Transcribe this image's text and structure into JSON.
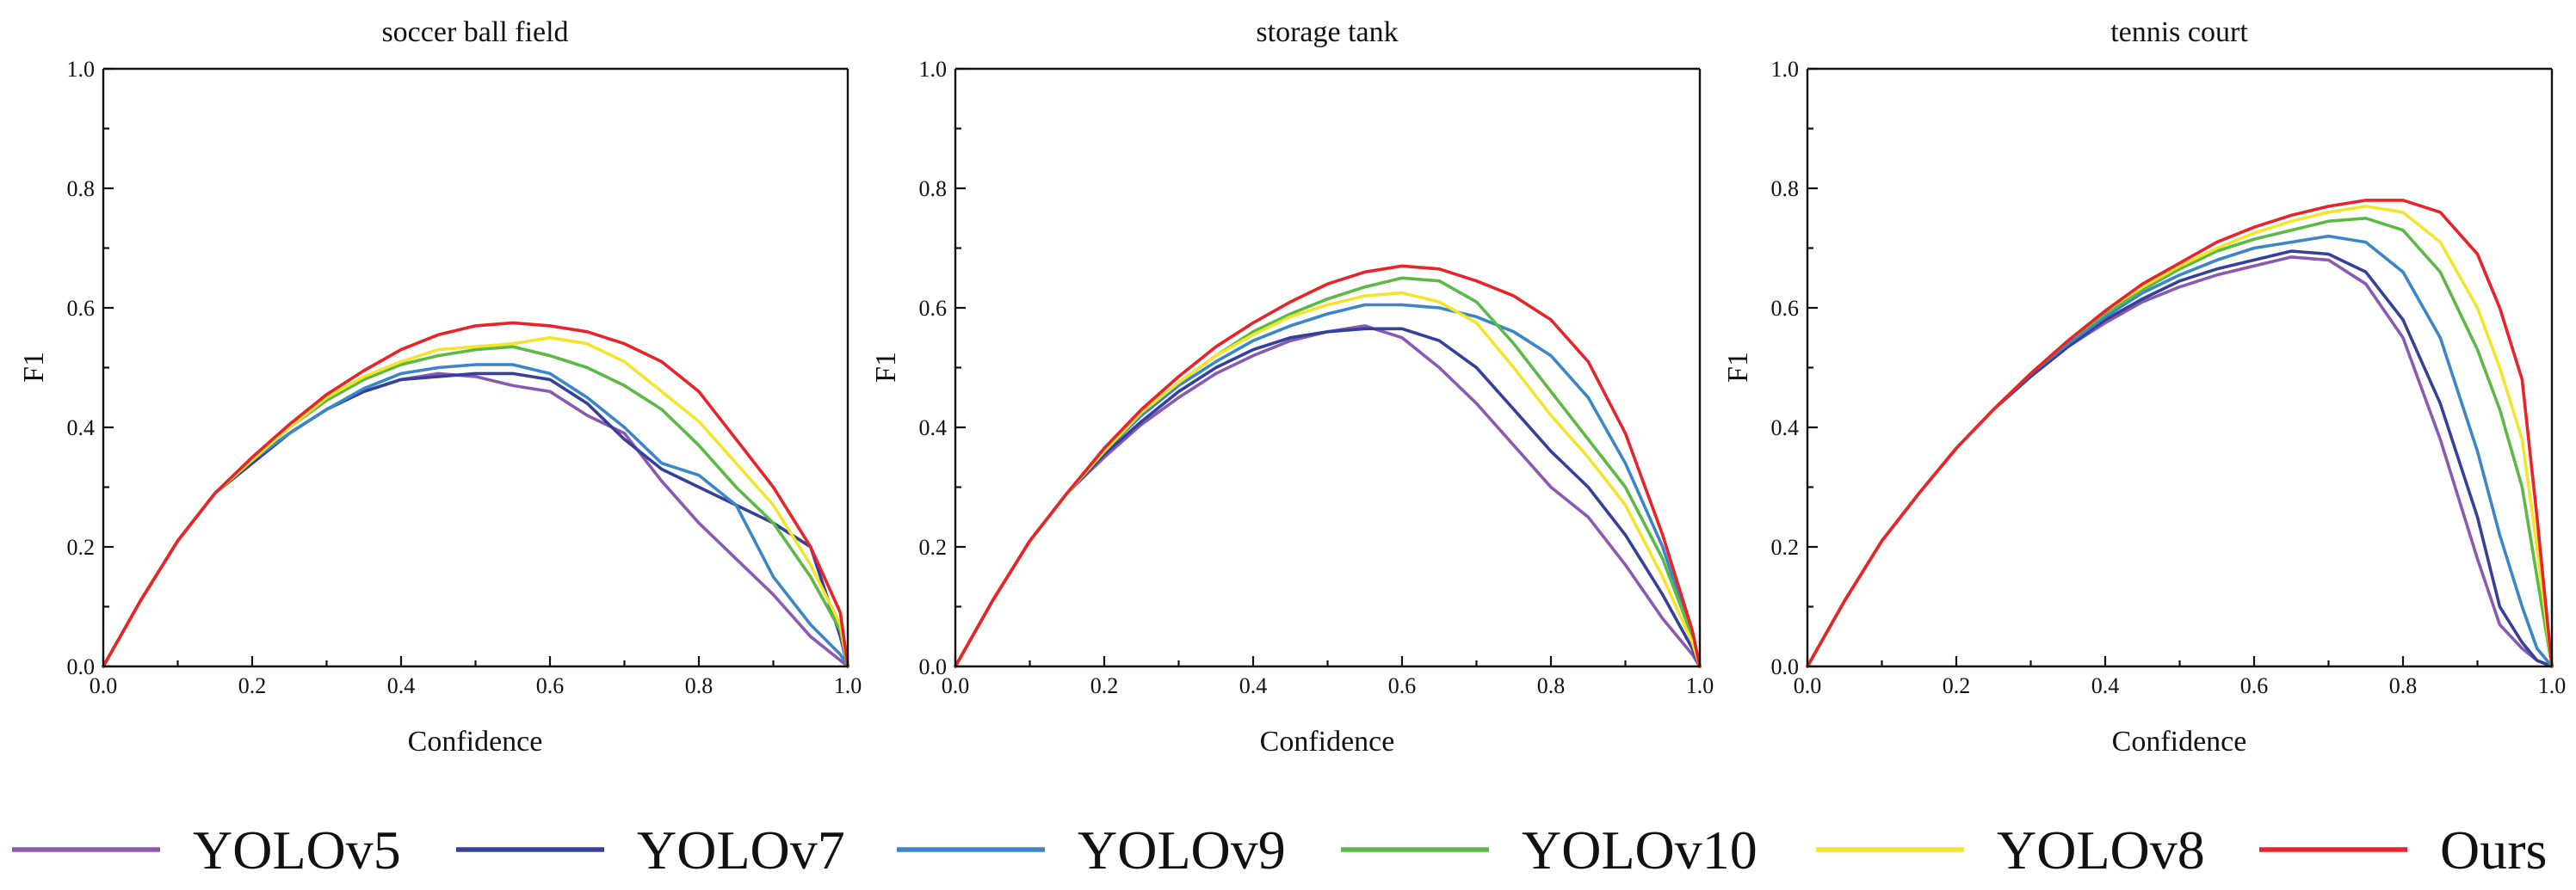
{
  "colors": {
    "YOLOv5": "#8a5ab3",
    "YOLOv7": "#35409a",
    "YOLOv9": "#3a86c8",
    "YOLOv10": "#5cb946",
    "YOLOv8": "#f2e52c",
    "Ours": "#e8232a"
  },
  "legend": {
    "items": [
      {
        "label": "YOLOv5",
        "color": "#8a5ab3"
      },
      {
        "label": "YOLOv7",
        "color": "#35409a"
      },
      {
        "label": "YOLOv9",
        "color": "#3a86c8"
      },
      {
        "label": "YOLOv10",
        "color": "#5cb946"
      },
      {
        "label": "YOLOv8",
        "color": "#f2e52c"
      },
      {
        "label": "Ours",
        "color": "#e8232a"
      }
    ]
  },
  "chart_data": [
    {
      "type": "line",
      "title": "soccer ball field",
      "xlabel": "Confidence",
      "ylabel": "F1",
      "xlim": [
        0.0,
        1.0
      ],
      "ylim": [
        0.0,
        1.0
      ],
      "xticks": [
        "0.0",
        "0.2",
        "0.4",
        "0.6",
        "0.8",
        "1.0"
      ],
      "yticks": [
        "0.0",
        "0.2",
        "0.4",
        "0.6",
        "0.8",
        "1.0"
      ],
      "x": [
        0.0,
        0.05,
        0.1,
        0.15,
        0.2,
        0.25,
        0.3,
        0.35,
        0.4,
        0.45,
        0.5,
        0.55,
        0.6,
        0.65,
        0.7,
        0.75,
        0.8,
        0.85,
        0.9,
        0.95,
        0.99,
        1.0
      ],
      "series": [
        {
          "name": "YOLOv5",
          "values": [
            0.0,
            0.11,
            0.21,
            0.29,
            0.34,
            0.39,
            0.43,
            0.46,
            0.48,
            0.49,
            0.485,
            0.47,
            0.46,
            0.42,
            0.39,
            0.31,
            0.24,
            0.18,
            0.12,
            0.05,
            0.01,
            0.0
          ]
        },
        {
          "name": "YOLOv7",
          "values": [
            0.0,
            0.11,
            0.21,
            0.29,
            0.34,
            0.39,
            0.43,
            0.46,
            0.48,
            0.485,
            0.49,
            0.49,
            0.48,
            0.44,
            0.38,
            0.33,
            0.3,
            0.27,
            0.24,
            0.2,
            0.05,
            0.0
          ]
        },
        {
          "name": "YOLOv9",
          "values": [
            0.0,
            0.11,
            0.21,
            0.29,
            0.345,
            0.39,
            0.43,
            0.465,
            0.49,
            0.5,
            0.505,
            0.505,
            0.49,
            0.45,
            0.4,
            0.34,
            0.32,
            0.27,
            0.15,
            0.07,
            0.02,
            0.0
          ]
        },
        {
          "name": "YOLOv10",
          "values": [
            0.0,
            0.11,
            0.21,
            0.29,
            0.345,
            0.4,
            0.445,
            0.48,
            0.505,
            0.52,
            0.53,
            0.535,
            0.52,
            0.5,
            0.47,
            0.43,
            0.37,
            0.3,
            0.24,
            0.15,
            0.06,
            0.0
          ]
        },
        {
          "name": "YOLOv8",
          "values": [
            0.0,
            0.11,
            0.21,
            0.29,
            0.345,
            0.4,
            0.45,
            0.485,
            0.51,
            0.53,
            0.535,
            0.54,
            0.55,
            0.54,
            0.51,
            0.46,
            0.41,
            0.34,
            0.27,
            0.17,
            0.07,
            0.0
          ]
        },
        {
          "name": "Ours",
          "values": [
            0.0,
            0.11,
            0.21,
            0.29,
            0.35,
            0.405,
            0.455,
            0.495,
            0.53,
            0.555,
            0.57,
            0.575,
            0.57,
            0.56,
            0.54,
            0.51,
            0.46,
            0.38,
            0.3,
            0.2,
            0.09,
            0.0
          ]
        }
      ]
    },
    {
      "type": "line",
      "title": "storage tank",
      "xlabel": "Confidence",
      "ylabel": "F1",
      "xlim": [
        0.0,
        1.0
      ],
      "ylim": [
        0.0,
        1.0
      ],
      "xticks": [
        "0.0",
        "0.2",
        "0.4",
        "0.6",
        "0.8",
        "1.0"
      ],
      "yticks": [
        "0.0",
        "0.2",
        "0.4",
        "0.6",
        "0.8",
        "1.0"
      ],
      "x": [
        0.0,
        0.05,
        0.1,
        0.15,
        0.2,
        0.25,
        0.3,
        0.35,
        0.4,
        0.45,
        0.5,
        0.55,
        0.6,
        0.65,
        0.7,
        0.75,
        0.8,
        0.85,
        0.9,
        0.95,
        0.99,
        1.0
      ],
      "series": [
        {
          "name": "YOLOv5",
          "values": [
            0.0,
            0.11,
            0.21,
            0.29,
            0.35,
            0.405,
            0.45,
            0.49,
            0.52,
            0.545,
            0.56,
            0.57,
            0.55,
            0.5,
            0.44,
            0.37,
            0.3,
            0.25,
            0.17,
            0.08,
            0.02,
            0.0
          ]
        },
        {
          "name": "YOLOv7",
          "values": [
            0.0,
            0.11,
            0.21,
            0.29,
            0.355,
            0.41,
            0.46,
            0.5,
            0.53,
            0.55,
            0.56,
            0.565,
            0.565,
            0.545,
            0.5,
            0.43,
            0.36,
            0.3,
            0.22,
            0.12,
            0.03,
            0.0
          ]
        },
        {
          "name": "YOLOv9",
          "values": [
            0.0,
            0.11,
            0.21,
            0.29,
            0.36,
            0.42,
            0.47,
            0.51,
            0.545,
            0.57,
            0.59,
            0.605,
            0.605,
            0.6,
            0.585,
            0.56,
            0.52,
            0.45,
            0.34,
            0.2,
            0.05,
            0.0
          ]
        },
        {
          "name": "YOLOv10",
          "values": [
            0.0,
            0.11,
            0.21,
            0.29,
            0.36,
            0.425,
            0.475,
            0.52,
            0.56,
            0.59,
            0.615,
            0.635,
            0.65,
            0.645,
            0.61,
            0.54,
            0.46,
            0.38,
            0.3,
            0.18,
            0.05,
            0.0
          ]
        },
        {
          "name": "YOLOv8",
          "values": [
            0.0,
            0.11,
            0.21,
            0.29,
            0.36,
            0.425,
            0.475,
            0.52,
            0.555,
            0.585,
            0.605,
            0.62,
            0.625,
            0.61,
            0.575,
            0.5,
            0.42,
            0.35,
            0.27,
            0.15,
            0.04,
            0.0
          ]
        },
        {
          "name": "Ours",
          "values": [
            0.0,
            0.11,
            0.21,
            0.29,
            0.365,
            0.43,
            0.485,
            0.535,
            0.575,
            0.61,
            0.64,
            0.66,
            0.67,
            0.665,
            0.645,
            0.62,
            0.58,
            0.51,
            0.39,
            0.22,
            0.06,
            0.0
          ]
        }
      ]
    },
    {
      "type": "line",
      "title": "tennis court",
      "xlabel": "Confidence",
      "ylabel": "F1",
      "xlim": [
        0.0,
        1.0
      ],
      "ylim": [
        0.0,
        1.0
      ],
      "xticks": [
        "0.0",
        "0.2",
        "0.4",
        "0.6",
        "0.8",
        "1.0"
      ],
      "yticks": [
        "0.0",
        "0.2",
        "0.4",
        "0.6",
        "0.8",
        "1.0"
      ],
      "x": [
        0.0,
        0.05,
        0.1,
        0.15,
        0.2,
        0.25,
        0.3,
        0.35,
        0.4,
        0.45,
        0.5,
        0.55,
        0.6,
        0.65,
        0.7,
        0.75,
        0.8,
        0.85,
        0.9,
        0.93,
        0.96,
        0.98,
        1.0
      ],
      "series": [
        {
          "name": "YOLOv5",
          "values": [
            0.0,
            0.11,
            0.21,
            0.29,
            0.365,
            0.43,
            0.485,
            0.535,
            0.575,
            0.61,
            0.635,
            0.655,
            0.67,
            0.685,
            0.68,
            0.64,
            0.55,
            0.38,
            0.18,
            0.07,
            0.03,
            0.01,
            0.0
          ]
        },
        {
          "name": "YOLOv7",
          "values": [
            0.0,
            0.11,
            0.21,
            0.29,
            0.365,
            0.43,
            0.485,
            0.535,
            0.58,
            0.615,
            0.645,
            0.665,
            0.68,
            0.695,
            0.69,
            0.66,
            0.58,
            0.44,
            0.25,
            0.1,
            0.04,
            0.01,
            0.0
          ]
        },
        {
          "name": "YOLOv9",
          "values": [
            0.0,
            0.11,
            0.21,
            0.29,
            0.365,
            0.43,
            0.49,
            0.54,
            0.585,
            0.625,
            0.655,
            0.68,
            0.7,
            0.71,
            0.72,
            0.71,
            0.66,
            0.55,
            0.36,
            0.22,
            0.1,
            0.03,
            0.0
          ]
        },
        {
          "name": "YOLOv10",
          "values": [
            0.0,
            0.11,
            0.21,
            0.29,
            0.365,
            0.43,
            0.49,
            0.545,
            0.59,
            0.63,
            0.665,
            0.695,
            0.715,
            0.73,
            0.745,
            0.75,
            0.73,
            0.66,
            0.53,
            0.43,
            0.3,
            0.15,
            0.0
          ]
        },
        {
          "name": "YOLOv8",
          "values": [
            0.0,
            0.11,
            0.21,
            0.29,
            0.365,
            0.43,
            0.49,
            0.545,
            0.595,
            0.635,
            0.67,
            0.7,
            0.725,
            0.745,
            0.76,
            0.77,
            0.76,
            0.71,
            0.6,
            0.5,
            0.38,
            0.2,
            0.0
          ]
        },
        {
          "name": "Ours",
          "values": [
            0.0,
            0.11,
            0.21,
            0.29,
            0.365,
            0.43,
            0.49,
            0.545,
            0.595,
            0.64,
            0.675,
            0.71,
            0.735,
            0.755,
            0.77,
            0.78,
            0.78,
            0.76,
            0.69,
            0.6,
            0.48,
            0.25,
            0.0
          ]
        }
      ]
    }
  ]
}
